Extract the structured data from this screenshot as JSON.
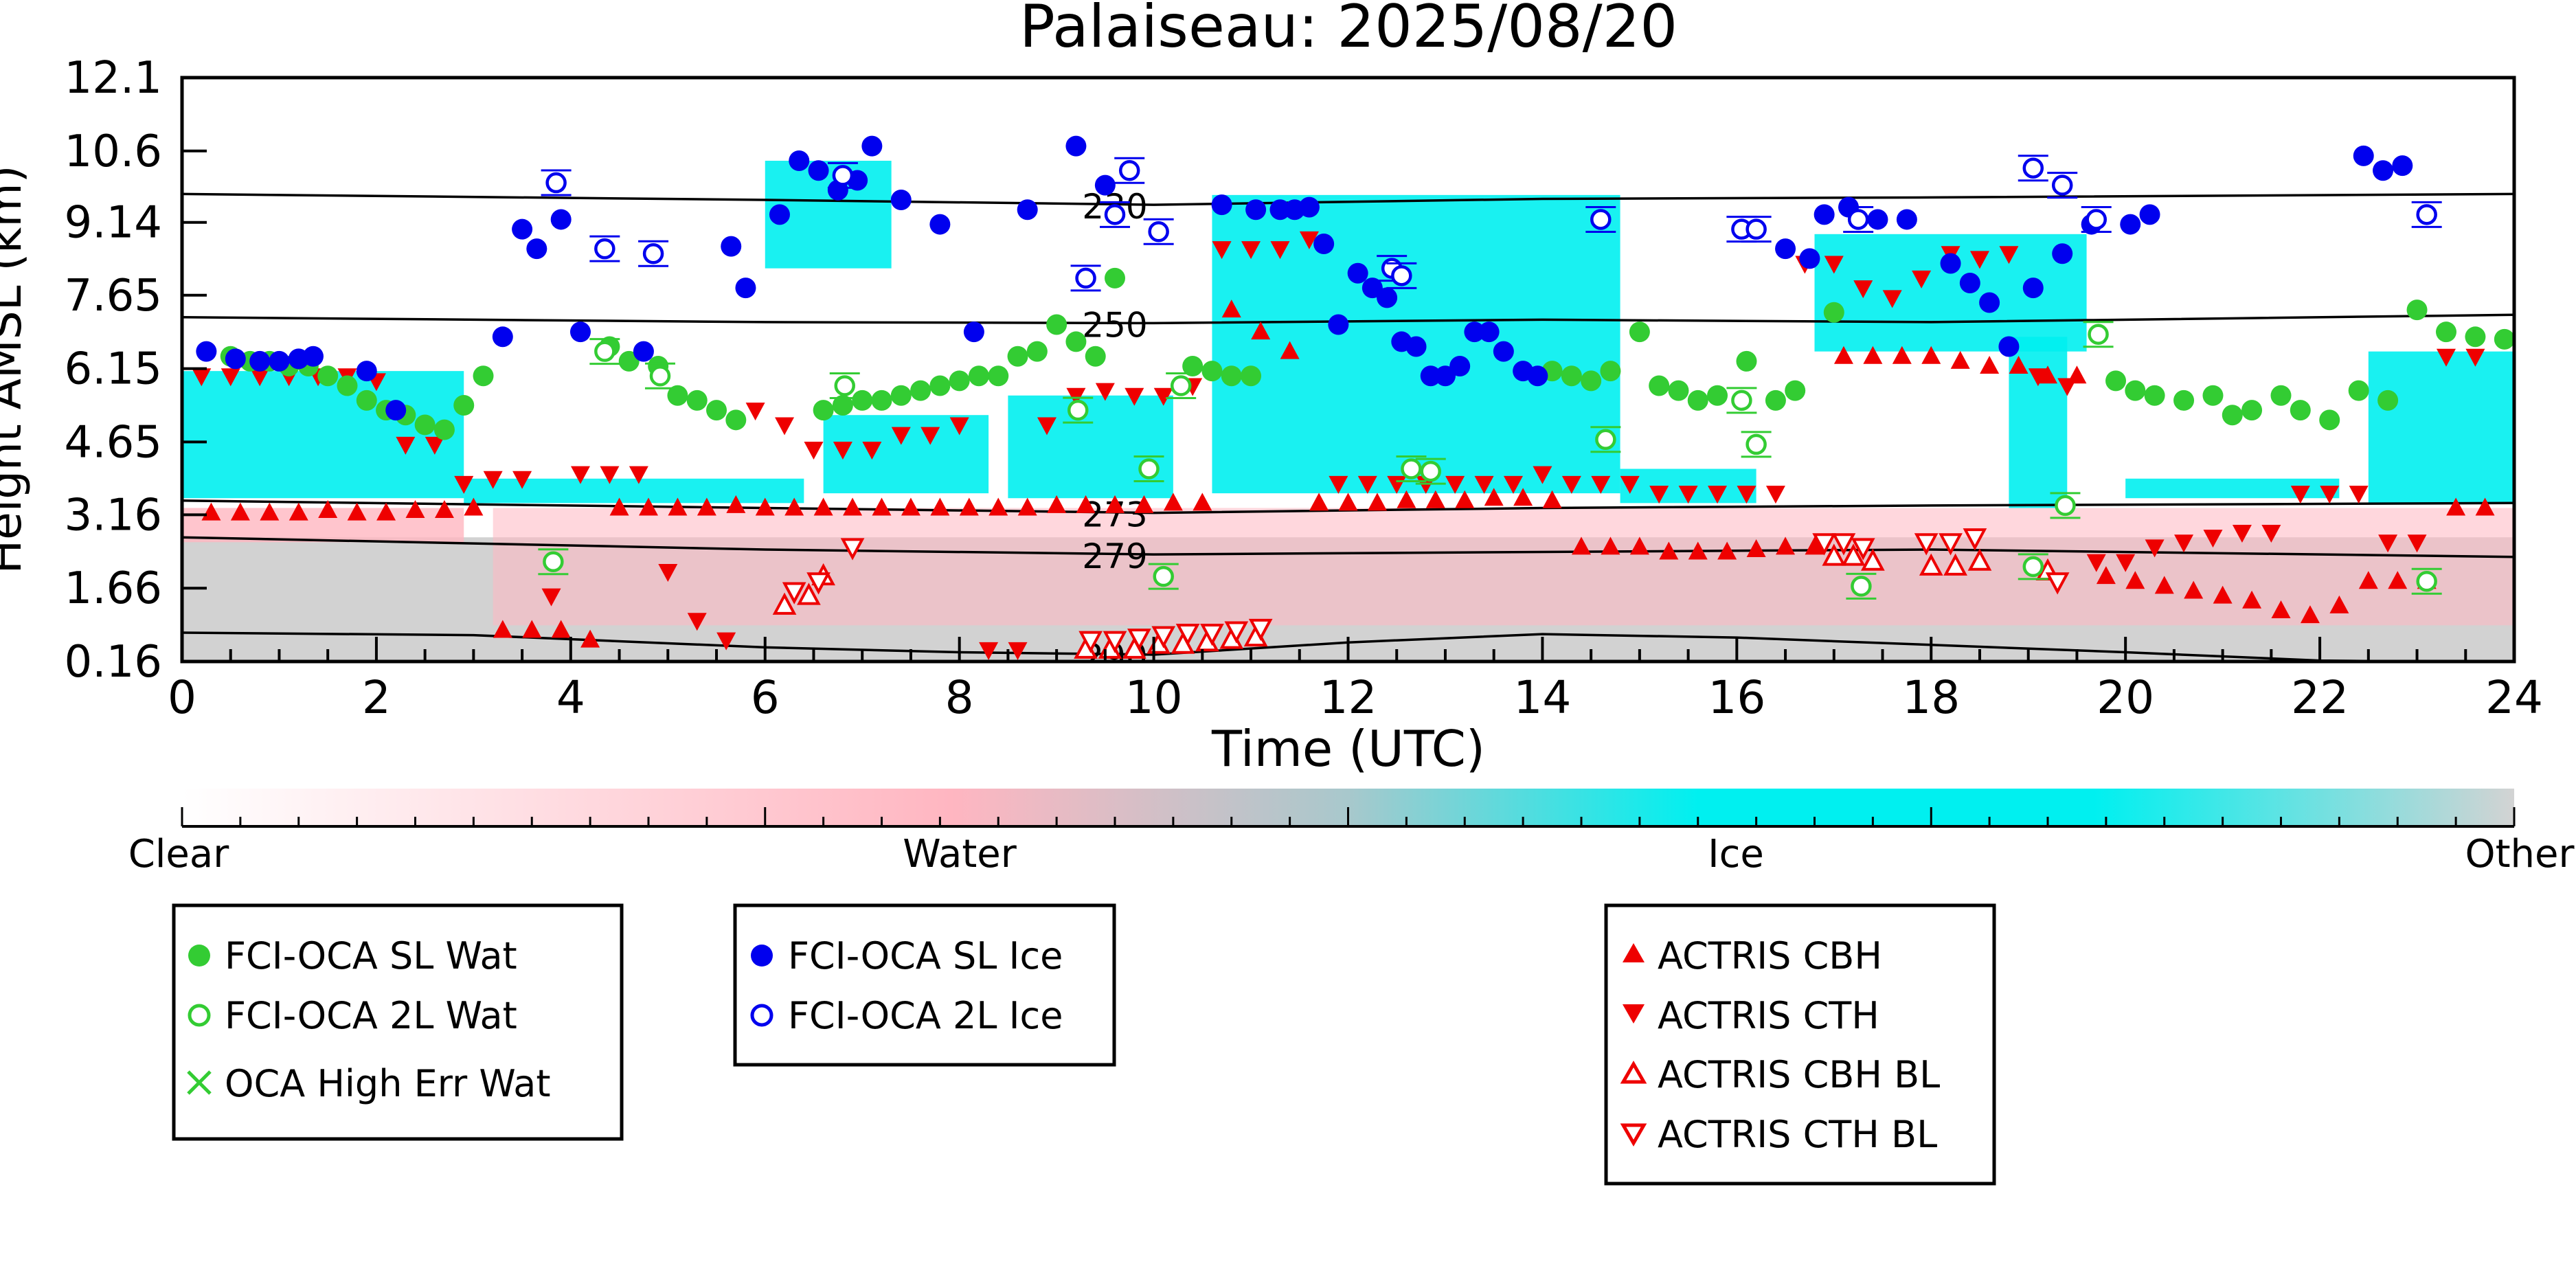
{
  "chart_data": {
    "type": "scatter",
    "title": "Palaiseau: 2025/08/20",
    "xlabel": "Time (UTC)",
    "ylabel": "Height AMSL (km)",
    "xlim": [
      0,
      24
    ],
    "ylim": [
      0.16,
      12.1
    ],
    "x_ticks": [
      "0",
      "2",
      "4",
      "6",
      "8",
      "10",
      "12",
      "14",
      "16",
      "18",
      "20",
      "22",
      "24"
    ],
    "y_ticks": [
      "0.16",
      "1.66",
      "3.16",
      "4.65",
      "6.15",
      "7.65",
      "9.14",
      "10.6",
      "12.1"
    ],
    "y_tick_values": [
      0.16,
      1.66,
      3.16,
      4.65,
      6.15,
      7.65,
      9.14,
      10.6,
      12.1
    ],
    "colorbar": {
      "labels": [
        "Clear",
        "Water",
        "Ice",
        "Other"
      ],
      "colors": [
        "#ffffff",
        "#ffb6c1",
        "#00f0f0",
        "#d3d3d3"
      ]
    },
    "colors": {
      "sl_wat": "#33cc33",
      "sl_ice": "#0000ee",
      "actris": "#ee0000",
      "ice": "#00f0f0",
      "water": "#ffb6c1",
      "other": "#d0d0d0"
    },
    "isotherms": [
      {
        "label": "230",
        "points": [
          [
            0,
            9.72
          ],
          [
            6,
            9.6
          ],
          [
            10,
            9.5
          ],
          [
            14,
            9.62
          ],
          [
            18,
            9.65
          ],
          [
            24,
            9.72
          ]
        ]
      },
      {
        "label": "250",
        "points": [
          [
            0,
            7.2
          ],
          [
            6,
            7.1
          ],
          [
            10,
            7.08
          ],
          [
            14,
            7.15
          ],
          [
            18,
            7.1
          ],
          [
            24,
            7.25
          ]
        ]
      },
      {
        "label": "273",
        "points": [
          [
            0,
            3.45
          ],
          [
            6,
            3.3
          ],
          [
            10,
            3.2
          ],
          [
            14,
            3.3
          ],
          [
            18,
            3.35
          ],
          [
            24,
            3.4
          ]
        ]
      },
      {
        "label": "279",
        "points": [
          [
            0,
            2.7
          ],
          [
            6,
            2.45
          ],
          [
            10,
            2.35
          ],
          [
            14,
            2.4
          ],
          [
            18,
            2.45
          ],
          [
            24,
            2.3
          ]
        ]
      },
      {
        "label": "290",
        "points": [
          [
            0,
            0.75
          ],
          [
            3,
            0.7
          ],
          [
            6,
            0.45
          ],
          [
            8,
            0.35
          ],
          [
            10,
            0.3
          ],
          [
            12,
            0.55
          ],
          [
            14,
            0.72
          ],
          [
            16,
            0.65
          ],
          [
            18,
            0.5
          ],
          [
            20,
            0.35
          ],
          [
            22,
            0.18
          ],
          [
            24,
            0.14
          ]
        ]
      }
    ],
    "series": [
      {
        "name": "FCI-OCA SL Wat",
        "marker": "filled-circle",
        "x": [
          0.5,
          0.7,
          0.9,
          1.1,
          1.3,
          1.5,
          1.7,
          1.9,
          2.1,
          2.3,
          2.5,
          2.7,
          2.9,
          3.1,
          4.4,
          4.6,
          4.9,
          5.1,
          5.3,
          5.5,
          5.7,
          6.6,
          6.8,
          7,
          7.2,
          7.4,
          7.6,
          7.8,
          8.0,
          8.2,
          8.4,
          8.6,
          8.8,
          9.0,
          9.2,
          9.4,
          9.6,
          10.4,
          10.6,
          10.8,
          11,
          14.1,
          14.3,
          14.5,
          14.7,
          15.0,
          15.2,
          15.4,
          15.6,
          15.8,
          16.1,
          16.4,
          16.6,
          17,
          19.9,
          20.1,
          20.3,
          20.6,
          20.9,
          21.1,
          21.3,
          21.6,
          21.8,
          22.1,
          22.4,
          22.7,
          23,
          23.3,
          23.6,
          23.9
        ],
        "y": [
          6.4,
          6.3,
          6.3,
          6.2,
          6.2,
          6.0,
          5.8,
          5.5,
          5.3,
          5.2,
          5.0,
          4.9,
          5.4,
          6.0,
          6.6,
          6.3,
          6.2,
          5.6,
          5.5,
          5.3,
          5.1,
          5.3,
          5.4,
          5.5,
          5.5,
          5.6,
          5.7,
          5.8,
          5.9,
          6.0,
          6.0,
          6.4,
          6.5,
          7.05,
          6.7,
          6.4,
          8.0,
          6.2,
          6.1,
          6.0,
          6.0,
          6.1,
          6.0,
          5.9,
          6.1,
          6.9,
          5.8,
          5.7,
          5.5,
          5.6,
          6.3,
          5.5,
          5.7,
          7.3,
          5.9,
          5.7,
          5.6,
          5.5,
          5.6,
          5.2,
          5.3,
          5.6,
          5.3,
          5.1,
          5.7,
          5.5,
          7.35,
          6.9,
          6.8,
          6.75
        ]
      },
      {
        "name": "FCI-OCA 2L Wat",
        "marker": "open-circle",
        "x": [
          3.82,
          4.35,
          4.92,
          6.82,
          9.22,
          9.95,
          10.1,
          10.28,
          12.65,
          12.85,
          14.65,
          16.05,
          16.2,
          17.28,
          19.05,
          19.38,
          19.72,
          23.1
        ],
        "y": [
          2.2,
          6.5,
          6.0,
          5.8,
          5.3,
          4.1,
          1.9,
          5.8,
          4.1,
          4.05,
          4.7,
          5.5,
          4.6,
          1.7,
          2.1,
          3.35,
          6.85,
          1.8
        ]
      },
      {
        "name": "OCA High Err Wat",
        "marker": "cross",
        "x": [],
        "y": []
      },
      {
        "name": "FCI-OCA SL Ice",
        "marker": "filled-circle",
        "x": [
          0.25,
          0.55,
          0.8,
          1.0,
          1.2,
          1.35,
          1.9,
          2.2,
          3.3,
          3.5,
          3.65,
          3.9,
          4.1,
          4.75,
          5.65,
          5.8,
          6.15,
          6.35,
          6.55,
          6.75,
          6.95,
          7.1,
          7.4,
          7.8,
          8.15,
          8.7,
          9.2,
          9.5,
          10.7,
          11.05,
          11.3,
          11.45,
          11.6,
          11.75,
          11.9,
          12.1,
          12.25,
          12.4,
          12.55,
          12.7,
          12.85,
          13.0,
          13.15,
          13.3,
          13.45,
          13.6,
          13.8,
          13.95,
          16.5,
          16.75,
          16.9,
          17.15,
          17.45,
          17.75,
          18.2,
          18.4,
          18.6,
          18.8,
          19.05,
          19.35,
          19.65,
          20.05,
          20.25,
          22.45,
          22.65,
          22.85
        ],
        "y": [
          6.5,
          6.35,
          6.3,
          6.3,
          6.35,
          6.4,
          6.1,
          5.3,
          6.8,
          9.0,
          8.6,
          9.2,
          6.9,
          6.5,
          8.65,
          7.8,
          9.3,
          10.4,
          10.2,
          9.8,
          10.0,
          10.7,
          9.6,
          9.1,
          6.9,
          9.4,
          10.7,
          9.9,
          9.5,
          9.4,
          9.4,
          9.4,
          9.45,
          8.7,
          7.05,
          8.1,
          7.8,
          7.6,
          6.7,
          6.6,
          6.0,
          6.0,
          6.2,
          6.9,
          6.9,
          6.5,
          6.1,
          6.0,
          8.6,
          8.4,
          9.3,
          9.45,
          9.2,
          9.2,
          8.3,
          7.9,
          7.5,
          6.6,
          7.8,
          8.5,
          9.1,
          9.1,
          9.3,
          10.5,
          10.2,
          10.3
        ],
        "note_x_offsets": "ordered by x"
      },
      {
        "name": "FCI-OCA 2L Ice",
        "marker": "open-circle",
        "x": [
          3.85,
          4.35,
          4.85,
          6.8,
          9.3,
          9.6,
          9.75,
          10.05,
          12.45,
          12.55,
          14.6,
          16.05,
          16.2,
          17.25,
          19.05,
          19.35,
          19.7,
          23.1
        ],
        "y": [
          9.95,
          8.6,
          8.5,
          10.1,
          8.0,
          9.3,
          10.2,
          8.95,
          8.2,
          8.05,
          9.2,
          9.0,
          9.0,
          9.2,
          10.25,
          9.9,
          9.2,
          9.3
        ]
      },
      {
        "name": "ACTRIS CBH",
        "marker": "filled-triangle-up",
        "x": [
          0.3,
          0.6,
          0.9,
          1.2,
          1.5,
          1.8,
          2.1,
          2.4,
          2.7,
          3.0,
          3.3,
          3.6,
          3.9,
          4.2,
          4.5,
          4.8,
          5.1,
          5.4,
          5.7,
          6.0,
          6.3,
          6.6,
          6.9,
          7.2,
          7.5,
          7.8,
          8.1,
          8.4,
          8.7,
          9.0,
          9.3,
          9.6,
          9.9,
          10.2,
          10.5,
          10.8,
          11.1,
          11.4,
          11.7,
          12.0,
          12.3,
          12.6,
          12.9,
          13.2,
          13.5,
          13.8,
          14.1,
          14.4,
          14.7,
          15.0,
          15.3,
          15.6,
          15.9,
          16.2,
          16.5,
          16.8,
          17.1,
          17.4,
          17.7,
          18.0,
          18.3,
          18.6,
          18.9,
          19.2,
          19.5,
          19.8,
          20.1,
          20.4,
          20.7,
          21.0,
          21.3,
          21.6,
          21.9,
          22.2,
          22.5,
          22.8,
          23.1,
          23.4,
          23.7
        ],
        "y": [
          3.2,
          3.2,
          3.2,
          3.2,
          3.25,
          3.2,
          3.2,
          3.25,
          3.25,
          3.3,
          0.8,
          0.8,
          0.8,
          0.6,
          3.3,
          3.3,
          3.3,
          3.3,
          3.35,
          3.3,
          3.3,
          3.3,
          3.3,
          3.3,
          3.3,
          3.3,
          3.3,
          3.3,
          3.3,
          3.35,
          3.35,
          3.35,
          3.35,
          3.4,
          3.4,
          7.35,
          6.9,
          6.5,
          3.4,
          3.4,
          3.4,
          3.45,
          3.45,
          3.45,
          3.5,
          3.5,
          3.45,
          2.5,
          2.5,
          2.5,
          2.4,
          2.4,
          2.4,
          2.45,
          2.5,
          2.5,
          6.4,
          6.4,
          6.4,
          6.4,
          6.3,
          6.2,
          6.2,
          6.0,
          6.0,
          1.9,
          1.8,
          1.7,
          1.6,
          1.5,
          1.4,
          1.2,
          1.1,
          1.3,
          1.8,
          1.8,
          1.8,
          3.3,
          3.3
        ]
      },
      {
        "name": "ACTRIS CTH",
        "marker": "filled-triangle-down",
        "x": [
          0.2,
          0.5,
          0.8,
          1.1,
          1.4,
          1.7,
          2.0,
          2.3,
          2.6,
          2.9,
          3.2,
          3.5,
          3.8,
          4.1,
          4.4,
          4.7,
          5.0,
          5.3,
          5.6,
          5.9,
          6.2,
          6.5,
          6.8,
          7.1,
          7.4,
          7.7,
          8.0,
          8.3,
          8.6,
          8.9,
          9.2,
          9.5,
          9.8,
          10.1,
          10.4,
          10.7,
          11.0,
          11.3,
          11.6,
          11.9,
          12.2,
          12.5,
          12.8,
          13.1,
          13.4,
          13.7,
          14.0,
          14.3,
          14.6,
          14.9,
          15.2,
          15.5,
          15.8,
          16.1,
          16.4,
          16.7,
          17.0,
          17.3,
          17.6,
          17.9,
          18.2,
          18.5,
          18.8,
          19.1,
          19.4,
          19.7,
          20.0,
          20.3,
          20.6,
          20.9,
          21.2,
          21.5,
          21.8,
          22.1,
          22.4,
          22.7,
          23.0,
          23.3,
          23.6
        ],
        "y": [
          6.0,
          6.0,
          6.0,
          6.0,
          6.0,
          6.0,
          5.9,
          4.6,
          4.6,
          3.8,
          3.9,
          3.9,
          1.5,
          4.0,
          4.0,
          4.0,
          2.0,
          1.0,
          0.6,
          5.3,
          5.0,
          4.5,
          4.5,
          4.5,
          4.8,
          4.8,
          5.0,
          0.4,
          0.4,
          5.0,
          5.6,
          5.7,
          5.6,
          5.6,
          5.8,
          8.6,
          8.6,
          8.6,
          8.8,
          3.8,
          3.8,
          3.8,
          3.8,
          3.8,
          3.8,
          3.8,
          4.0,
          3.8,
          3.8,
          3.8,
          3.6,
          3.6,
          3.6,
          3.6,
          3.6,
          8.3,
          8.3,
          7.8,
          7.6,
          8.0,
          8.5,
          8.4,
          8.5,
          6.0,
          5.8,
          2.2,
          2.2,
          2.5,
          2.6,
          2.7,
          2.8,
          2.8,
          3.6,
          3.6,
          3.6,
          2.6,
          2.6,
          6.4,
          6.4
        ]
      },
      {
        "name": "ACTRIS CBH BL",
        "marker": "open-triangle-up",
        "x": [
          6.2,
          6.45,
          6.6,
          9.3,
          9.55,
          9.8,
          10.05,
          10.3,
          10.55,
          10.8,
          11.05,
          17.0,
          17.2,
          17.4,
          18.0,
          18.25,
          18.5,
          19.2
        ],
        "y": [
          1.3,
          1.5,
          1.9,
          0.4,
          0.4,
          0.4,
          0.5,
          0.5,
          0.55,
          0.6,
          0.65,
          2.3,
          2.3,
          2.2,
          2.1,
          2.1,
          2.2,
          2.0
        ]
      },
      {
        "name": "ACTRIS CTH BL",
        "marker": "open-triangle-down",
        "x": [
          6.3,
          6.55,
          6.9,
          9.35,
          9.6,
          9.85,
          10.1,
          10.35,
          10.6,
          10.85,
          11.1,
          16.9,
          17.1,
          17.3,
          17.95,
          18.2,
          18.45,
          19.3
        ],
        "y": [
          1.6,
          1.8,
          2.5,
          0.6,
          0.6,
          0.65,
          0.7,
          0.75,
          0.75,
          0.8,
          0.85,
          2.6,
          2.6,
          2.5,
          2.6,
          2.6,
          2.7,
          1.8
        ]
      }
    ],
    "legend": {
      "groups": [
        [
          "FCI-OCA SL Wat",
          "FCI-OCA 2L Wat",
          "OCA High Err Wat"
        ],
        [
          "FCI-OCA SL Ice",
          "FCI-OCA 2L Ice"
        ],
        [
          "ACTRIS CBH",
          "ACTRIS CTH",
          "ACTRIS CBH BL",
          "ACTRIS CTH BL"
        ]
      ],
      "placement": "below"
    }
  }
}
